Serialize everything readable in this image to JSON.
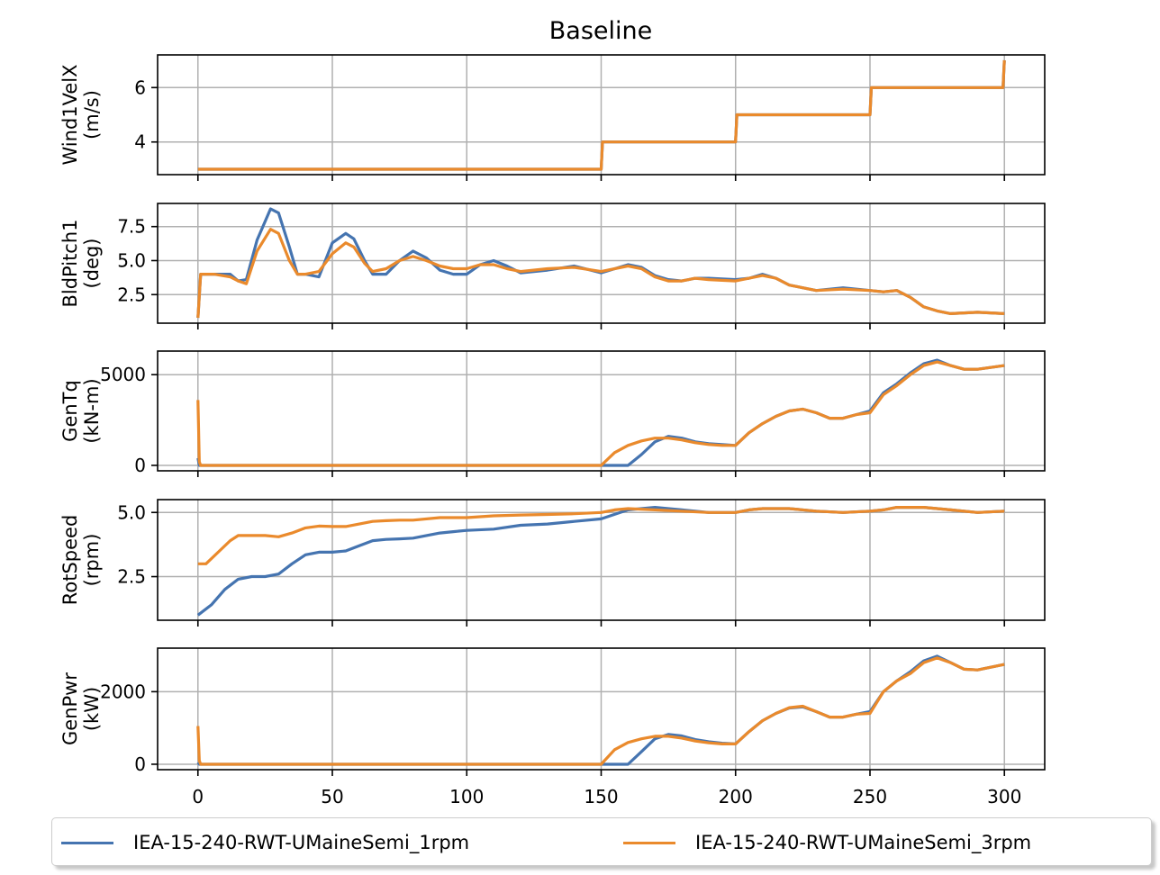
{
  "title": "Baseline",
  "series_colors": [
    "#4574b0",
    "#ea8a2c"
  ],
  "legend": [
    {
      "label": "IEA-15-240-RWT-UMaineSemi_1rpm",
      "color": "#4574b0"
    },
    {
      "label": "IEA-15-240-RWT-UMaineSemi_3rpm",
      "color": "#ea8a2c"
    }
  ],
  "xticks": [
    "0",
    "50",
    "100",
    "150",
    "200",
    "250",
    "300"
  ],
  "chart_data": [
    {
      "type": "line",
      "ylabel": [
        "Wind1VelX",
        "(m/s)"
      ],
      "xlim": [
        -15,
        315
      ],
      "ylim": [
        2.8,
        7.2
      ],
      "yticks": [
        4,
        6
      ],
      "ytick_labels": [
        "4",
        "6"
      ],
      "grid": true,
      "series": [
        {
          "name": "IEA-15-240-RWT-UMaineSemi_1rpm",
          "x": [
            0,
            150,
            150.5,
            200,
            200.5,
            250,
            250.5,
            299.5,
            300
          ],
          "y": [
            3,
            3,
            4,
            4,
            5,
            5,
            6,
            6,
            7
          ]
        },
        {
          "name": "IEA-15-240-RWT-UMaineSemi_3rpm",
          "x": [
            0,
            150,
            150.5,
            200,
            200.5,
            250,
            250.5,
            299.5,
            300
          ],
          "y": [
            3,
            3,
            4,
            4,
            5,
            5,
            6,
            6,
            7
          ]
        }
      ]
    },
    {
      "type": "line",
      "ylabel": [
        "BldPitch1",
        "(deg)"
      ],
      "xlim": [
        -15,
        315
      ],
      "ylim": [
        0.4,
        9.2
      ],
      "yticks": [
        2.5,
        5.0,
        7.5
      ],
      "ytick_labels": [
        "2.5",
        "5.0",
        "7.5"
      ],
      "grid": true,
      "series": [
        {
          "name": "IEA-15-240-RWT-UMaineSemi_1rpm",
          "x": [
            0,
            1,
            6,
            12,
            15,
            18,
            22,
            27,
            30,
            34,
            37,
            40,
            45,
            50,
            55,
            58,
            62,
            65,
            70,
            75,
            80,
            85,
            90,
            95,
            100,
            105,
            110,
            115,
            120,
            130,
            140,
            150,
            160,
            165,
            170,
            175,
            180,
            185,
            190,
            200,
            205,
            210,
            215,
            220,
            225,
            230,
            240,
            250,
            255,
            260,
            265,
            270,
            275,
            280,
            290,
            300
          ],
          "y": [
            0.8,
            4.0,
            4.0,
            4.0,
            3.5,
            3.6,
            6.5,
            8.8,
            8.5,
            6.0,
            4.0,
            4.0,
            3.8,
            6.3,
            7.0,
            6.6,
            5.0,
            4.0,
            4.0,
            5.0,
            5.7,
            5.2,
            4.3,
            4.0,
            4.0,
            4.7,
            5.0,
            4.6,
            4.1,
            4.3,
            4.6,
            4.1,
            4.7,
            4.5,
            3.9,
            3.6,
            3.5,
            3.7,
            3.7,
            3.6,
            3.7,
            4.0,
            3.7,
            3.2,
            3.0,
            2.8,
            3.0,
            2.8,
            2.7,
            2.8,
            2.3,
            1.6,
            1.3,
            1.1,
            1.2,
            1.1
          ]
        },
        {
          "name": "IEA-15-240-RWT-UMaineSemi_3rpm",
          "x": [
            0,
            1,
            6,
            12,
            15,
            18,
            22,
            27,
            30,
            34,
            37,
            40,
            45,
            50,
            55,
            58,
            62,
            65,
            70,
            75,
            80,
            85,
            90,
            95,
            100,
            105,
            110,
            115,
            120,
            130,
            140,
            150,
            160,
            165,
            170,
            175,
            180,
            185,
            190,
            200,
            205,
            210,
            215,
            220,
            225,
            230,
            240,
            250,
            255,
            260,
            265,
            270,
            275,
            280,
            290,
            300
          ],
          "y": [
            0.8,
            4.0,
            4.0,
            3.8,
            3.5,
            3.3,
            5.7,
            7.3,
            7.0,
            5.0,
            4.0,
            4.0,
            4.2,
            5.5,
            6.3,
            6.0,
            4.8,
            4.2,
            4.4,
            5.0,
            5.3,
            5.0,
            4.6,
            4.4,
            4.4,
            4.7,
            4.7,
            4.4,
            4.2,
            4.4,
            4.5,
            4.2,
            4.6,
            4.4,
            3.8,
            3.5,
            3.5,
            3.7,
            3.6,
            3.5,
            3.7,
            3.9,
            3.7,
            3.2,
            3.0,
            2.8,
            2.9,
            2.8,
            2.7,
            2.8,
            2.3,
            1.6,
            1.3,
            1.1,
            1.2,
            1.1
          ]
        }
      ]
    },
    {
      "type": "line",
      "ylabel": [
        "GenTq",
        "(kN-m)"
      ],
      "xlim": [
        -15,
        315
      ],
      "ylim": [
        -300,
        6300
      ],
      "yticks": [
        0,
        5000
      ],
      "ytick_labels": [
        "0",
        "5000"
      ],
      "grid": true,
      "series": [
        {
          "name": "IEA-15-240-RWT-UMaineSemi_1rpm",
          "x": [
            0,
            0.5,
            1,
            150,
            155,
            160,
            165,
            170,
            175,
            180,
            185,
            190,
            195,
            200,
            205,
            210,
            215,
            220,
            225,
            230,
            235,
            240,
            245,
            250,
            255,
            260,
            265,
            270,
            275,
            280,
            285,
            290,
            300
          ],
          "y": [
            400,
            0,
            0,
            0,
            0,
            0,
            600,
            1300,
            1600,
            1500,
            1300,
            1200,
            1150,
            1100,
            1800,
            2300,
            2700,
            3000,
            3100,
            2900,
            2600,
            2600,
            2800,
            3000,
            4000,
            4500,
            5100,
            5600,
            5800,
            5500,
            5300,
            5300,
            5500
          ]
        },
        {
          "name": "IEA-15-240-RWT-UMaineSemi_3rpm",
          "x": [
            0,
            0.5,
            1,
            150,
            155,
            160,
            165,
            170,
            175,
            180,
            185,
            190,
            195,
            200,
            205,
            210,
            215,
            220,
            225,
            230,
            235,
            240,
            245,
            250,
            255,
            260,
            265,
            270,
            275,
            280,
            285,
            290,
            300
          ],
          "y": [
            3600,
            200,
            0,
            0,
            700,
            1100,
            1350,
            1500,
            1500,
            1400,
            1250,
            1150,
            1100,
            1100,
            1800,
            2300,
            2700,
            3000,
            3100,
            2900,
            2600,
            2600,
            2800,
            2900,
            3900,
            4400,
            5000,
            5500,
            5700,
            5500,
            5300,
            5300,
            5500
          ]
        }
      ]
    },
    {
      "type": "line",
      "ylabel": [
        "RotSpeed",
        "(rpm)"
      ],
      "xlim": [
        -15,
        315
      ],
      "ylim": [
        0.8,
        5.5
      ],
      "yticks": [
        2.5,
        5.0
      ],
      "ytick_labels": [
        "2.5",
        "5.0"
      ],
      "grid": true,
      "series": [
        {
          "name": "IEA-15-240-RWT-UMaineSemi_1rpm",
          "x": [
            0,
            5,
            10,
            15,
            20,
            25,
            30,
            35,
            40,
            45,
            50,
            55,
            60,
            65,
            70,
            75,
            80,
            85,
            90,
            95,
            100,
            110,
            120,
            130,
            140,
            150,
            160,
            170,
            180,
            190,
            200,
            205,
            210,
            220,
            230,
            240,
            250,
            255,
            260,
            270,
            280,
            290,
            300
          ],
          "y": [
            1.0,
            1.4,
            2.0,
            2.4,
            2.5,
            2.5,
            2.6,
            3.0,
            3.35,
            3.45,
            3.45,
            3.5,
            3.7,
            3.9,
            3.95,
            3.97,
            4.0,
            4.1,
            4.2,
            4.25,
            4.3,
            4.35,
            4.5,
            4.55,
            4.65,
            4.75,
            5.1,
            5.2,
            5.1,
            5.0,
            5.0,
            5.1,
            5.15,
            5.15,
            5.05,
            5.0,
            5.05,
            5.1,
            5.2,
            5.2,
            5.1,
            5.0,
            5.05
          ]
        },
        {
          "name": "IEA-15-240-RWT-UMaineSemi_3rpm",
          "x": [
            0,
            3,
            8,
            12,
            15,
            20,
            25,
            30,
            35,
            40,
            45,
            50,
            55,
            60,
            65,
            70,
            75,
            80,
            90,
            100,
            110,
            120,
            130,
            140,
            150,
            155,
            160,
            170,
            180,
            190,
            200,
            205,
            210,
            220,
            230,
            240,
            250,
            255,
            260,
            270,
            280,
            290,
            300
          ],
          "y": [
            3.0,
            3.0,
            3.5,
            3.9,
            4.1,
            4.1,
            4.1,
            4.05,
            4.2,
            4.4,
            4.47,
            4.45,
            4.45,
            4.55,
            4.65,
            4.68,
            4.7,
            4.7,
            4.8,
            4.8,
            4.87,
            4.9,
            4.92,
            4.95,
            5.0,
            5.1,
            5.15,
            5.1,
            5.05,
            5.0,
            5.0,
            5.1,
            5.15,
            5.15,
            5.05,
            5.0,
            5.05,
            5.1,
            5.2,
            5.2,
            5.1,
            5.0,
            5.05
          ]
        }
      ]
    },
    {
      "type": "line",
      "ylabel": [
        "GenPwr",
        "(kW)"
      ],
      "xlim": [
        -15,
        315
      ],
      "ylim": [
        -150,
        3200
      ],
      "yticks": [
        0,
        2000
      ],
      "ytick_labels": [
        "0",
        "2000"
      ],
      "grid": true,
      "series": [
        {
          "name": "IEA-15-240-RWT-UMaineSemi_1rpm",
          "x": [
            0,
            0.5,
            1,
            150,
            155,
            160,
            165,
            170,
            175,
            180,
            185,
            190,
            195,
            200,
            205,
            210,
            215,
            220,
            225,
            230,
            235,
            240,
            245,
            250,
            255,
            260,
            265,
            270,
            275,
            280,
            285,
            290,
            300
          ],
          "y": [
            50,
            0,
            0,
            0,
            0,
            0,
            350,
            700,
            820,
            780,
            680,
            620,
            580,
            560,
            900,
            1200,
            1400,
            1550,
            1580,
            1450,
            1300,
            1300,
            1380,
            1450,
            2000,
            2300,
            2550,
            2850,
            2980,
            2800,
            2620,
            2600,
            2750
          ]
        },
        {
          "name": "IEA-15-240-RWT-UMaineSemi_3rpm",
          "x": [
            0,
            0.5,
            1,
            150,
            155,
            160,
            165,
            170,
            175,
            180,
            185,
            190,
            195,
            200,
            205,
            210,
            215,
            220,
            225,
            230,
            235,
            240,
            245,
            250,
            255,
            260,
            265,
            270,
            275,
            280,
            285,
            290,
            300
          ],
          "y": [
            1050,
            100,
            0,
            0,
            400,
            600,
            700,
            770,
            770,
            720,
            640,
            590,
            560,
            560,
            900,
            1200,
            1400,
            1560,
            1600,
            1450,
            1300,
            1300,
            1380,
            1400,
            2000,
            2300,
            2500,
            2800,
            2930,
            2800,
            2620,
            2600,
            2750
          ]
        }
      ]
    }
  ]
}
